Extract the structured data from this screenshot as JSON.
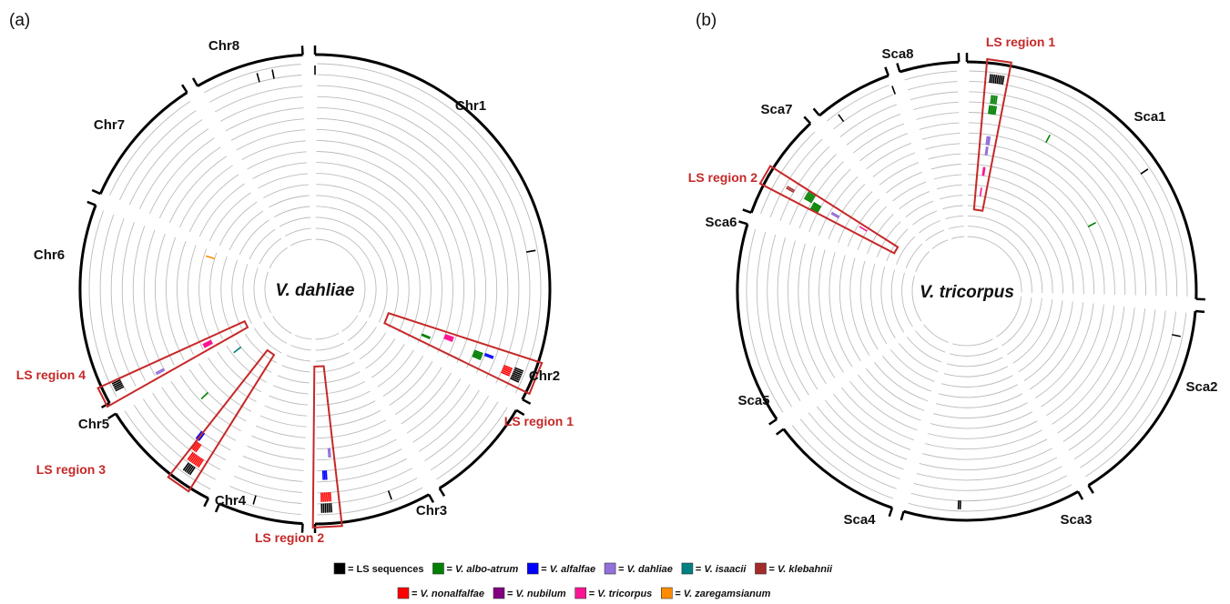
{
  "panels": [
    {
      "label": "(a)",
      "center_label": "V. dahliae",
      "chromosomes": [
        {
          "name": "Chr1",
          "start": 0,
          "end": 118
        },
        {
          "name": "Chr2",
          "start": 121,
          "end": 148
        },
        {
          "name": "Chr3",
          "start": 151,
          "end": 180
        },
        {
          "name": "Chr4",
          "start": 183,
          "end": 204
        },
        {
          "name": "Chr5",
          "start": 207,
          "end": 238
        },
        {
          "name": "Chr6",
          "start": 241,
          "end": 291
        },
        {
          "name": "Chr7",
          "start": 294,
          "end": 327
        },
        {
          "name": "Chr8",
          "start": 330,
          "end": 357
        }
      ],
      "ls_regions": [
        {
          "label": "LS region 1",
          "angle": 112,
          "width": 8
        },
        {
          "label": "LS region 2",
          "angle": 177,
          "width": 7
        },
        {
          "label": "LS region 3",
          "angle": 215,
          "width": 6
        },
        {
          "label": "LS region 4",
          "angle": 243,
          "width": 5
        }
      ],
      "track_hits": [
        {
          "angle": 113,
          "track": 0,
          "color": "#000000",
          "count": 7
        },
        {
          "angle": 113,
          "track": 1,
          "color": "#ff0000",
          "count": 5
        },
        {
          "angle": 111,
          "track": 3,
          "color": "#0000ff",
          "count": 2
        },
        {
          "angle": 112,
          "track": 4,
          "color": "#008000",
          "count": 5
        },
        {
          "angle": 110,
          "track": 7,
          "color": "#ff1493",
          "count": 4
        },
        {
          "angle": 113,
          "track": 9,
          "color": "#008000",
          "count": 2
        },
        {
          "angle": 177,
          "track": 0,
          "color": "#000000",
          "count": 6
        },
        {
          "angle": 177,
          "track": 1,
          "color": "#ff0000",
          "count": 6
        },
        {
          "angle": 177,
          "track": 3,
          "color": "#0000ff",
          "count": 3
        },
        {
          "angle": 175,
          "track": 5,
          "color": "#9370db",
          "count": 2
        },
        {
          "angle": 215,
          "track": 0,
          "color": "#000000",
          "count": 5
        },
        {
          "angle": 215,
          "track": 1,
          "color": "#ff0000",
          "count": 8
        },
        {
          "angle": 217,
          "track": 2,
          "color": "#ff0000",
          "count": 4
        },
        {
          "angle": 218,
          "track": 3,
          "color": "#0000ff",
          "count": 3
        },
        {
          "angle": 244,
          "track": 0,
          "color": "#000000",
          "count": 5
        },
        {
          "angle": 242,
          "track": 4,
          "color": "#9370db",
          "count": 2
        },
        {
          "angle": 243,
          "track": 9,
          "color": "#ff1493",
          "count": 4
        },
        {
          "angle": 226,
          "track": 6,
          "color": "#008000",
          "count": 1
        },
        {
          "angle": 232,
          "track": 11,
          "color": "#008080",
          "count": 1
        },
        {
          "angle": 287,
          "track": 10,
          "color": "#ff8c00",
          "count": 1
        },
        {
          "angle": 349,
          "track": 0,
          "color": "#000000",
          "count": 1
        },
        {
          "angle": 345,
          "track": 0,
          "color": "#000000",
          "count": 1
        },
        {
          "angle": 360,
          "track": 0,
          "color": "#000000",
          "count": 1
        },
        {
          "angle": 80,
          "track": 0,
          "color": "#000000",
          "count": 1
        },
        {
          "angle": 160,
          "track": 0,
          "color": "#000000",
          "count": 1
        },
        {
          "angle": 196,
          "track": 0,
          "color": "#000000",
          "count": 1
        }
      ]
    },
    {
      "label": "(b)",
      "center_label": "V. tricorpus",
      "chromosomes": [
        {
          "name": "Sca1",
          "start": 0,
          "end": 92
        },
        {
          "name": "Sca2",
          "start": 95,
          "end": 148
        },
        {
          "name": "Sca3",
          "start": 151,
          "end": 196
        },
        {
          "name": "Sca4",
          "start": 199,
          "end": 233
        },
        {
          "name": "Sca5",
          "start": 236,
          "end": 287
        },
        {
          "name": "Sca6",
          "start": 290,
          "end": 317
        },
        {
          "name": "Sca7",
          "start": 320,
          "end": 340
        },
        {
          "name": "Sca8",
          "start": 343,
          "end": 358
        }
      ],
      "ls_regions": [
        {
          "label": "LS region 1",
          "angle": 8,
          "width": 6
        },
        {
          "label": "LS region 2",
          "angle": 300,
          "width": 5
        }
      ],
      "track_hits": [
        {
          "angle": 8,
          "track": 0,
          "color": "#000000",
          "count": 8
        },
        {
          "angle": 8,
          "track": 2,
          "color": "#008000",
          "count": 4
        },
        {
          "angle": 8,
          "track": 3,
          "color": "#008000",
          "count": 5
        },
        {
          "angle": 8,
          "track": 6,
          "color": "#9370db",
          "count": 3
        },
        {
          "angle": 8,
          "track": 7,
          "color": "#9370db",
          "count": 2
        },
        {
          "angle": 8,
          "track": 9,
          "color": "#ff1493",
          "count": 2
        },
        {
          "angle": 8,
          "track": 11,
          "color": "#ff1493",
          "count": 1
        },
        {
          "angle": 300,
          "track": 1,
          "color": "#a52a2a",
          "count": 2
        },
        {
          "angle": 301,
          "track": 3,
          "color": "#008000",
          "count": 6
        },
        {
          "angle": 299,
          "track": 4,
          "color": "#008000",
          "count": 5
        },
        {
          "angle": 300,
          "track": 6,
          "color": "#9370db",
          "count": 2
        },
        {
          "angle": 301,
          "track": 9,
          "color": "#ff1493",
          "count": 1
        },
        {
          "angle": 28,
          "track": 4,
          "color": "#008000",
          "count": 1
        },
        {
          "angle": 62,
          "track": 7,
          "color": "#008000",
          "count": 1
        },
        {
          "angle": 56,
          "track": 0,
          "color": "#000000",
          "count": 1
        },
        {
          "angle": 182,
          "track": 0,
          "color": "#000000",
          "count": 2
        },
        {
          "angle": 340,
          "track": 0,
          "color": "#000000",
          "count": 1
        },
        {
          "angle": 324,
          "track": 0,
          "color": "#000000",
          "count": 1
        },
        {
          "angle": 102,
          "track": 0,
          "color": "#000000",
          "count": 1
        }
      ]
    }
  ],
  "legend": [
    {
      "swatch": "#000000",
      "prefix": "= ",
      "name": "LS sequences",
      "italic": false
    },
    {
      "swatch": "#008000",
      "prefix": "= ",
      "name": "V. albo-atrum",
      "italic": true
    },
    {
      "swatch": "#0000ff",
      "prefix": "= ",
      "name": "V. alfalfae",
      "italic": true
    },
    {
      "swatch": "#9370db",
      "prefix": "= ",
      "name": "V. dahliae",
      "italic": true
    },
    {
      "swatch": "#008080",
      "prefix": "= ",
      "name": "V. isaacii",
      "italic": true
    },
    {
      "swatch": "#a52a2a",
      "prefix": "= ",
      "name": "V. klebahnii",
      "italic": true
    },
    {
      "swatch": "#ff0000",
      "prefix": "= ",
      "name": "V. nonalfalfae",
      "italic": true
    },
    {
      "swatch": "#800080",
      "prefix": "= ",
      "name": "V. nubilum",
      "italic": true
    },
    {
      "swatch": "#ff1493",
      "prefix": "= ",
      "name": "V. tricorpus",
      "italic": true
    },
    {
      "swatch": "#ff8c00",
      "prefix": "= ",
      "name": "V. zaregamsianum",
      "italic": true
    }
  ],
  "colors": {
    "ring": "#bbbbbb",
    "ideogram": "#000000",
    "ls_box": "#c62828"
  }
}
